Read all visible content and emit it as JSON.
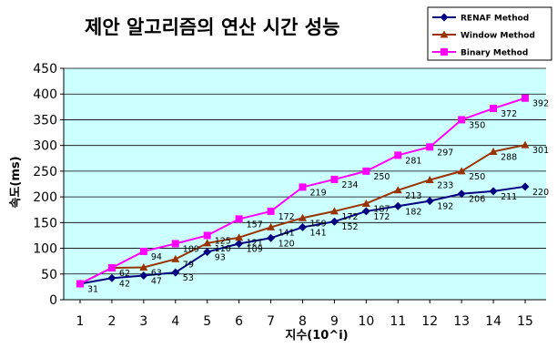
{
  "chart_data": {
    "type": "line",
    "title": "제안 알고리즘의 연산 시간 성능",
    "xlabel": "지수(10^i)",
    "ylabel": "속도(ms)",
    "categories": [
      "1",
      "2",
      "3",
      "4",
      "5",
      "6",
      "7",
      "8",
      "9",
      "10",
      "11",
      "12",
      "13",
      "14",
      "15"
    ],
    "ylim": [
      0,
      450
    ],
    "yticks": [
      0,
      50,
      100,
      150,
      200,
      250,
      300,
      350,
      400,
      450
    ],
    "grid": true,
    "legend_position": "top-right",
    "plot_background": "#ccffff",
    "series": [
      {
        "name": "RENAF Method",
        "color": "#000080",
        "marker": "diamond",
        "values": [
          31,
          42,
          47,
          53,
          93,
          109,
          120,
          141,
          152,
          172,
          182,
          192,
          206,
          211,
          220
        ]
      },
      {
        "name": "Window Method",
        "color": "#993300",
        "marker": "triangle",
        "values": [
          31,
          62,
          63,
          79,
          110,
          121,
          141,
          159,
          172,
          187,
          213,
          233,
          250,
          288,
          301
        ]
      },
      {
        "name": "Binary Method",
        "color": "#ff00ff",
        "marker": "square",
        "values": [
          31,
          62,
          94,
          109,
          125,
          157,
          172,
          219,
          234,
          250,
          281,
          297,
          350,
          372,
          392
        ]
      }
    ],
    "data_labels": [
      [
        "31",
        "42",
        "47",
        "53",
        "93",
        "109",
        "120",
        "141",
        "152",
        "172",
        "182",
        "192",
        "206",
        "211",
        "220"
      ],
      [
        "",
        "62",
        "63",
        "79",
        "110",
        "121",
        "141",
        "159",
        "172",
        "187",
        "213",
        "233",
        "250",
        "288",
        "301"
      ],
      [
        "",
        "",
        "94",
        "109",
        "125",
        "157",
        "172",
        "219",
        "234",
        "250",
        "281",
        "297",
        "350",
        "372",
        "392"
      ]
    ]
  }
}
